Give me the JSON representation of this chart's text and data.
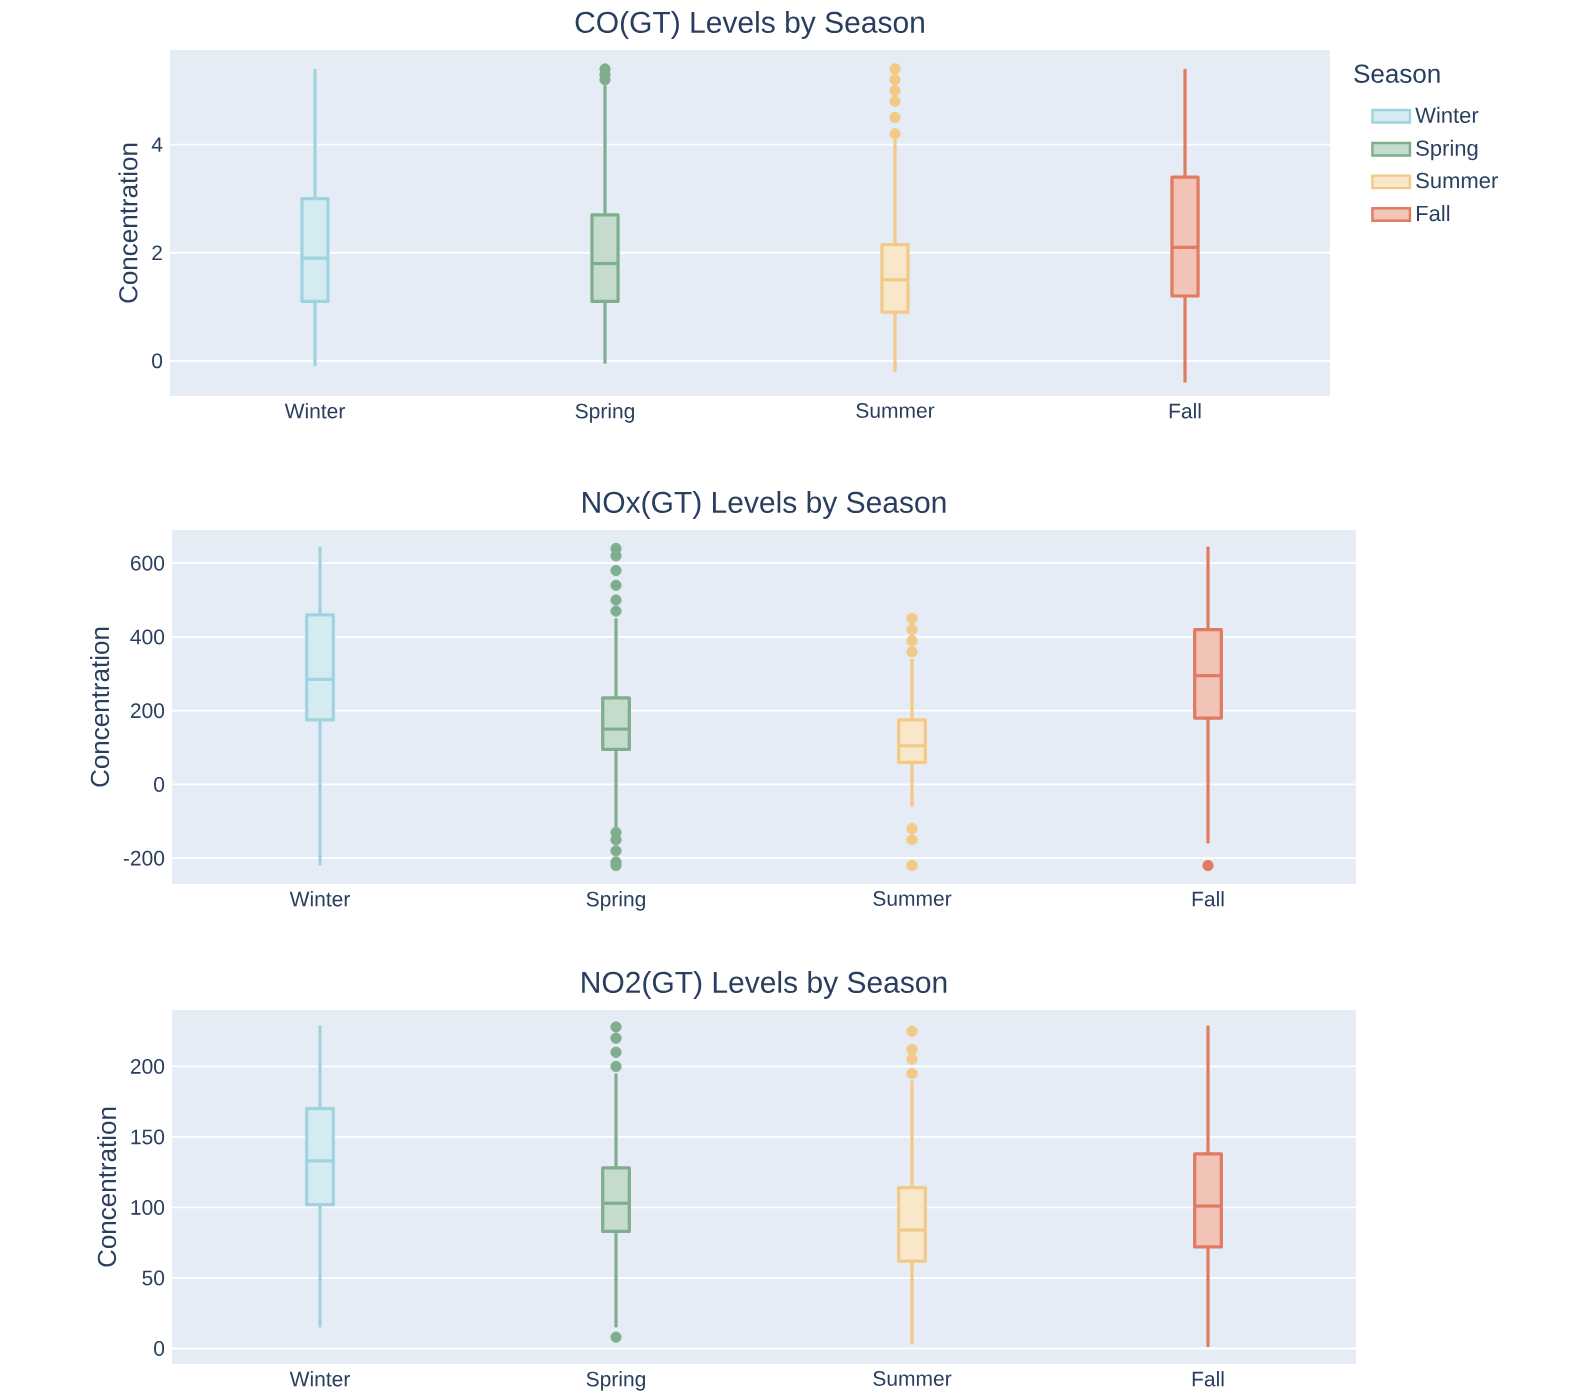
{
  "chart_data": [
    {
      "type": "box",
      "title": "CO(GT) Levels by Season",
      "ylabel": "Concentration",
      "categories": [
        "Winter",
        "Spring",
        "Summer",
        "Fall"
      ],
      "ylim": [
        -0.65,
        5.75
      ],
      "yticks": [
        0,
        2,
        4
      ],
      "grid": "y",
      "legend": "top right",
      "legend_title": "Season",
      "series": [
        {
          "name": "Winter",
          "color": "#9fd3e0",
          "boxes": [
            {
              "low": -0.1,
              "q1": 1.1,
              "median": 1.9,
              "q3": 3.0,
              "high": 5.4
            },
            null,
            null,
            null
          ]
        },
        {
          "name": "Spring",
          "color": "#7fae8e",
          "boxes": [
            null,
            {
              "low": -0.05,
              "q1": 1.1,
              "median": 1.8,
              "q3": 2.7,
              "high": 5.1,
              "outliers": [
                5.2,
                5.3,
                5.4
              ]
            },
            null,
            null
          ]
        },
        {
          "name": "Summer",
          "color": "#f2c987",
          "boxes": [
            null,
            null,
            {
              "low": -0.2,
              "q1": 0.9,
              "median": 1.5,
              "q3": 2.15,
              "high": 4.1,
              "outliers": [
                4.2,
                4.5,
                4.8,
                5.0,
                5.2,
                5.4
              ]
            },
            null
          ]
        },
        {
          "name": "Fall",
          "color": "#e07b5f",
          "boxes": [
            null,
            null,
            null,
            {
              "low": -0.4,
              "q1": 1.2,
              "median": 2.1,
              "q3": 3.4,
              "high": 5.4
            }
          ]
        }
      ]
    },
    {
      "type": "box",
      "title": "NOx(GT) Levels by Season",
      "ylabel": "Concentration",
      "categories": [
        "Winter",
        "Spring",
        "Summer",
        "Fall"
      ],
      "ylim": [
        -270,
        690
      ],
      "yticks": [
        -200,
        0,
        200,
        400,
        600
      ],
      "grid": "y",
      "series": [
        {
          "color": "#9fd3e0",
          "boxes": [
            {
              "low": -220,
              "q1": 175,
              "median": 285,
              "q3": 460,
              "high": 645
            },
            null,
            null,
            null
          ]
        },
        {
          "color": "#7fae8e",
          "boxes": [
            null,
            {
              "low": -115,
              "q1": 95,
              "median": 150,
              "q3": 235,
              "high": 450,
              "outliers": [
                470,
                500,
                540,
                580,
                620,
                640,
                -130,
                -150,
                -180,
                -210,
                -220
              ]
            },
            null,
            null
          ]
        },
        {
          "color": "#f2c987",
          "boxes": [
            null,
            null,
            {
              "low": -60,
              "q1": 60,
              "median": 105,
              "q3": 175,
              "high": 340,
              "outliers": [
                360,
                390,
                420,
                450,
                -120,
                -150,
                -220
              ]
            },
            null
          ]
        },
        {
          "color": "#e07b5f",
          "boxes": [
            null,
            null,
            null,
            {
              "low": -160,
              "q1": 180,
              "median": 295,
              "q3": 420,
              "high": 645,
              "outliers": [
                -220
              ]
            }
          ]
        }
      ]
    },
    {
      "type": "box",
      "title": "NO2(GT) Levels by Season",
      "ylabel": "Concentration",
      "categories": [
        "Winter",
        "Spring",
        "Summer",
        "Fall"
      ],
      "ylim": [
        -11,
        240
      ],
      "yticks": [
        0,
        50,
        100,
        150,
        200
      ],
      "grid": "y",
      "series": [
        {
          "color": "#9fd3e0",
          "boxes": [
            {
              "low": 15,
              "q1": 102,
              "median": 133,
              "q3": 170,
              "high": 229
            },
            null,
            null,
            null
          ]
        },
        {
          "color": "#7fae8e",
          "boxes": [
            null,
            {
              "low": 15,
              "q1": 83,
              "median": 103,
              "q3": 128,
              "high": 195,
              "outliers": [
                200,
                210,
                220,
                228,
                8
              ]
            },
            null,
            null
          ]
        },
        {
          "color": "#f2c987",
          "boxes": [
            null,
            null,
            {
              "low": 3,
              "q1": 62,
              "median": 84,
              "q3": 114,
              "high": 190,
              "outliers": [
                195,
                205,
                212,
                225
              ]
            },
            null
          ]
        },
        {
          "color": "#e07b5f",
          "boxes": [
            null,
            null,
            null,
            {
              "low": 1,
              "q1": 72,
              "median": 101,
              "q3": 138,
              "high": 229
            }
          ]
        }
      ]
    }
  ]
}
